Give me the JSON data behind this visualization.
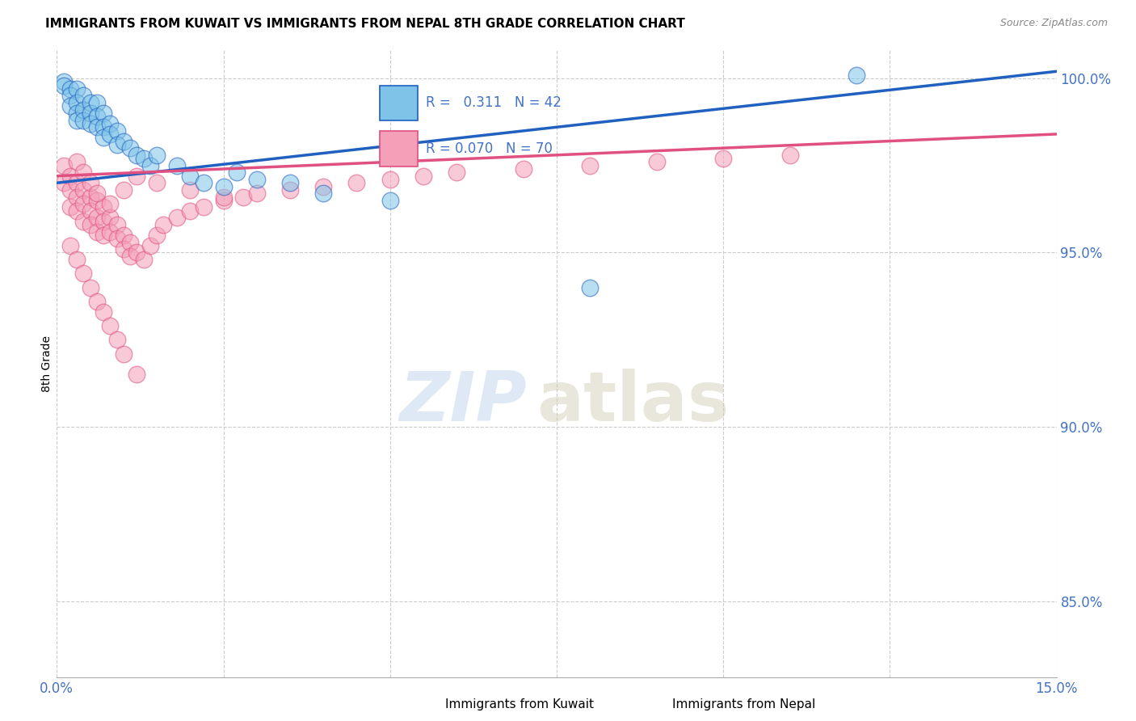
{
  "title": "IMMIGRANTS FROM KUWAIT VS IMMIGRANTS FROM NEPAL 8TH GRADE CORRELATION CHART",
  "source": "Source: ZipAtlas.com",
  "ylabel": "8th Grade",
  "ylabel_right_ticks": [
    "100.0%",
    "95.0%",
    "90.0%",
    "85.0%"
  ],
  "ylabel_right_vals": [
    1.0,
    0.95,
    0.9,
    0.85
  ],
  "xmin": 0.0,
  "xmax": 0.15,
  "ymin": 0.828,
  "ymax": 1.008,
  "legend_kuwait": "Immigrants from Kuwait",
  "legend_nepal": "Immigrants from Nepal",
  "R_kuwait": "0.311",
  "N_kuwait": "42",
  "R_nepal": "0.070",
  "N_nepal": "70",
  "color_kuwait": "#7fc4e8",
  "color_nepal": "#f4a0b8",
  "color_trendline_kuwait": "#2060c0",
  "color_trendline_nepal": "#e05080",
  "axis_color": "#4472C4",
  "kuwait_points_x": [
    0.001,
    0.001,
    0.002,
    0.002,
    0.002,
    0.003,
    0.003,
    0.003,
    0.003,
    0.004,
    0.004,
    0.004,
    0.005,
    0.005,
    0.005,
    0.006,
    0.006,
    0.006,
    0.007,
    0.007,
    0.007,
    0.008,
    0.008,
    0.009,
    0.009,
    0.01,
    0.011,
    0.012,
    0.013,
    0.014,
    0.015,
    0.018,
    0.02,
    0.022,
    0.025,
    0.027,
    0.03,
    0.035,
    0.04,
    0.05,
    0.08,
    0.12
  ],
  "kuwait_points_y": [
    0.999,
    0.998,
    0.997,
    0.995,
    0.992,
    0.997,
    0.993,
    0.99,
    0.988,
    0.995,
    0.991,
    0.988,
    0.993,
    0.99,
    0.987,
    0.993,
    0.989,
    0.986,
    0.99,
    0.986,
    0.983,
    0.987,
    0.984,
    0.985,
    0.981,
    0.982,
    0.98,
    0.978,
    0.977,
    0.975,
    0.978,
    0.975,
    0.972,
    0.97,
    0.969,
    0.973,
    0.971,
    0.97,
    0.967,
    0.965,
    0.94,
    1.001
  ],
  "nepal_points_x": [
    0.001,
    0.001,
    0.002,
    0.002,
    0.002,
    0.003,
    0.003,
    0.003,
    0.004,
    0.004,
    0.004,
    0.005,
    0.005,
    0.005,
    0.006,
    0.006,
    0.006,
    0.007,
    0.007,
    0.007,
    0.008,
    0.008,
    0.009,
    0.009,
    0.01,
    0.01,
    0.011,
    0.011,
    0.012,
    0.013,
    0.014,
    0.015,
    0.016,
    0.018,
    0.02,
    0.022,
    0.025,
    0.028,
    0.03,
    0.035,
    0.04,
    0.045,
    0.05,
    0.055,
    0.06,
    0.07,
    0.08,
    0.09,
    0.1,
    0.11,
    0.002,
    0.003,
    0.004,
    0.005,
    0.006,
    0.007,
    0.008,
    0.009,
    0.01,
    0.012,
    0.003,
    0.004,
    0.005,
    0.006,
    0.008,
    0.01,
    0.012,
    0.015,
    0.02,
    0.025
  ],
  "nepal_points_y": [
    0.975,
    0.97,
    0.972,
    0.968,
    0.963,
    0.97,
    0.966,
    0.962,
    0.968,
    0.964,
    0.959,
    0.966,
    0.962,
    0.958,
    0.965,
    0.96,
    0.956,
    0.963,
    0.959,
    0.955,
    0.96,
    0.956,
    0.958,
    0.954,
    0.955,
    0.951,
    0.953,
    0.949,
    0.95,
    0.948,
    0.952,
    0.955,
    0.958,
    0.96,
    0.962,
    0.963,
    0.965,
    0.966,
    0.967,
    0.968,
    0.969,
    0.97,
    0.971,
    0.972,
    0.973,
    0.974,
    0.975,
    0.976,
    0.977,
    0.978,
    0.952,
    0.948,
    0.944,
    0.94,
    0.936,
    0.933,
    0.929,
    0.925,
    0.921,
    0.915,
    0.976,
    0.973,
    0.97,
    0.967,
    0.964,
    0.968,
    0.972,
    0.97,
    0.968,
    0.966
  ],
  "watermark_zip": "ZIP",
  "watermark_atlas": "atlas",
  "background_color": "#ffffff",
  "grid_color": "#cccccc"
}
